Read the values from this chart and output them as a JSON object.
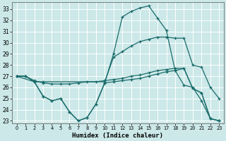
{
  "xlabel": "Humidex (Indice chaleur)",
  "bg_color": "#cce8e8",
  "grid_color": "#ffffff",
  "line_color": "#1a6b6b",
  "xlim": [
    -0.5,
    23.5
  ],
  "ylim": [
    22.8,
    33.6
  ],
  "yticks": [
    23,
    24,
    25,
    26,
    27,
    28,
    29,
    30,
    31,
    32,
    33
  ],
  "xticks": [
    0,
    1,
    2,
    3,
    4,
    5,
    6,
    7,
    8,
    9,
    10,
    11,
    12,
    13,
    14,
    15,
    16,
    17,
    18,
    19,
    20,
    21,
    22,
    23
  ],
  "line1_x": [
    0,
    1,
    2,
    3,
    4,
    5,
    6,
    7,
    8,
    9,
    10,
    11,
    12,
    13,
    14,
    15,
    16,
    17,
    18,
    19,
    20,
    21,
    22,
    23
  ],
  "line1_y": [
    27.0,
    27.0,
    26.5,
    25.2,
    24.8,
    25.0,
    23.8,
    23.0,
    23.3,
    24.5,
    26.4,
    29.0,
    32.3,
    32.8,
    33.1,
    33.3,
    32.2,
    31.1,
    27.5,
    26.2,
    26.0,
    24.8,
    23.2,
    23.0
  ],
  "line2_x": [
    0,
    2,
    3,
    10,
    11,
    12,
    13,
    14,
    15,
    16,
    17,
    18,
    19,
    20,
    21,
    22,
    23
  ],
  "line2_y": [
    27.0,
    26.5,
    26.5,
    26.5,
    28.7,
    29.2,
    29.7,
    30.1,
    30.3,
    30.5,
    30.5,
    30.4,
    30.4,
    28.0,
    27.8,
    26.0,
    25.0
  ],
  "line3_x": [
    0,
    1,
    2,
    3,
    4,
    5,
    6,
    7,
    8,
    9,
    10,
    11,
    12,
    13,
    14,
    15,
    16,
    17,
    18,
    19,
    20,
    21,
    22,
    23
  ],
  "line3_y": [
    27.0,
    27.0,
    26.6,
    26.4,
    26.3,
    26.3,
    26.3,
    26.4,
    26.5,
    26.5,
    26.6,
    26.7,
    26.8,
    27.0,
    27.1,
    27.3,
    27.5,
    27.6,
    27.7,
    27.7,
    25.9,
    25.5,
    23.2,
    23.0
  ],
  "line4_x": [
    0,
    1,
    2,
    3,
    4,
    5,
    6,
    7,
    8,
    9,
    10,
    11,
    12,
    13,
    14,
    15,
    16,
    17,
    18,
    19,
    20,
    21,
    22,
    23
  ],
  "line4_y": [
    27.0,
    27.0,
    26.5,
    25.2,
    24.8,
    25.0,
    23.8,
    23.0,
    23.3,
    24.5,
    26.4,
    26.5,
    26.6,
    26.7,
    26.8,
    27.0,
    27.2,
    27.4,
    27.5,
    27.7,
    25.9,
    25.5,
    23.2,
    23.0
  ]
}
